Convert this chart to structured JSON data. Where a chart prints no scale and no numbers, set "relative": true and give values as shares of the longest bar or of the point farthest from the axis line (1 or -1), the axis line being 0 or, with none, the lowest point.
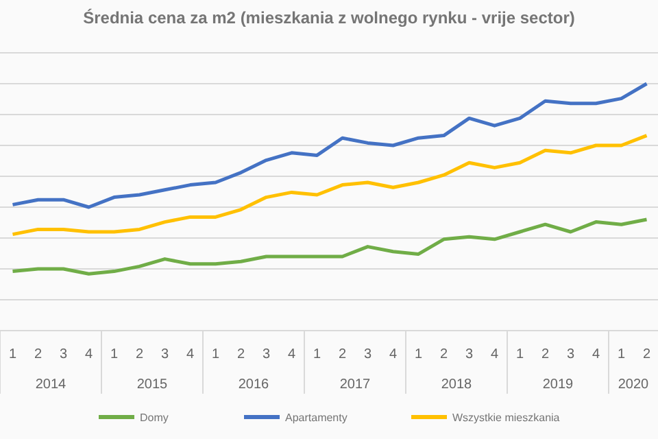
{
  "chart_data": {
    "type": "line",
    "title": "Średnia cena za m2 (mieszkania z wolnego rynku - vrije sector)",
    "categories": [
      "1",
      "2",
      "3",
      "4",
      "1",
      "2",
      "3",
      "4",
      "1",
      "2",
      "3",
      "4",
      "1",
      "2",
      "3",
      "4",
      "1",
      "2",
      "3",
      "4",
      "1",
      "2",
      "3",
      "4",
      "1",
      "2"
    ],
    "annotations": [
      "2014",
      "2015",
      "2016",
      "2017",
      "2018",
      "2019",
      "2020"
    ],
    "relative": true,
    "grid": true,
    "legend": "bottom",
    "marker": "none",
    "line_style": "solid",
    "series": [
      {
        "name": "Domy",
        "color": "#70ad47",
        "values": [
          0.24,
          0.25,
          0.25,
          0.23,
          0.24,
          0.26,
          0.29,
          0.27,
          0.27,
          0.28,
          0.3,
          0.3,
          0.3,
          0.3,
          0.34,
          0.32,
          0.31,
          0.37,
          0.38,
          0.37,
          0.4,
          0.43,
          0.4,
          0.44,
          0.43,
          0.45
        ]
      },
      {
        "name": "Apartamenty",
        "color": "#4472c4",
        "values": [
          0.51,
          0.53,
          0.53,
          0.5,
          0.54,
          0.55,
          0.57,
          0.59,
          0.6,
          0.64,
          0.69,
          0.72,
          0.71,
          0.78,
          0.76,
          0.75,
          0.78,
          0.79,
          0.86,
          0.83,
          0.86,
          0.93,
          0.92,
          0.92,
          0.94,
          1.0
        ]
      },
      {
        "name": "Wszystkie mieszkania",
        "color": "#ffc000",
        "values": [
          0.39,
          0.41,
          0.41,
          0.4,
          0.4,
          0.41,
          0.44,
          0.46,
          0.46,
          0.49,
          0.54,
          0.56,
          0.55,
          0.59,
          0.6,
          0.58,
          0.6,
          0.63,
          0.68,
          0.66,
          0.68,
          0.73,
          0.72,
          0.75,
          0.75,
          0.79
        ]
      }
    ]
  }
}
